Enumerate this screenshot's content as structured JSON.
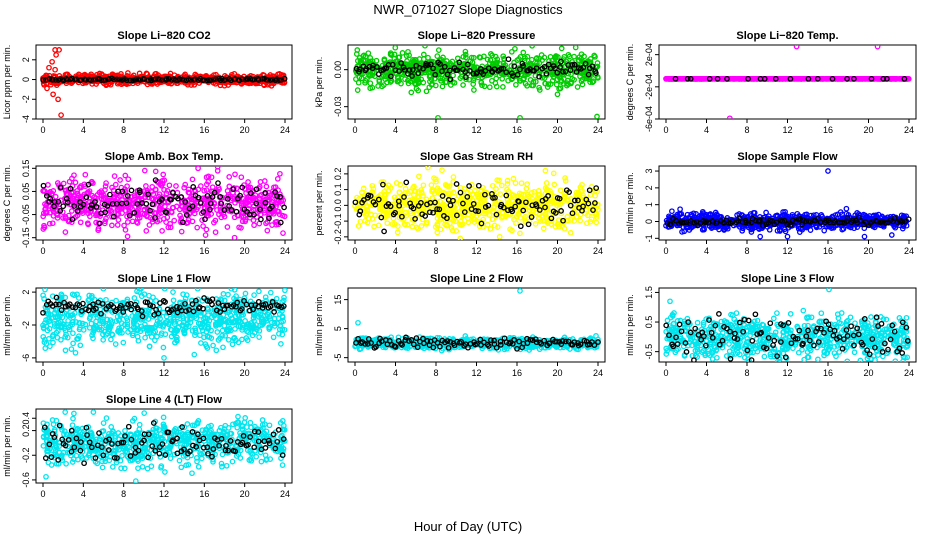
{
  "figure": {
    "title": "NWR_071027  Slope Diagnostics",
    "xlabel": "Hour of Day (UTC)"
  },
  "chart_data": [
    {
      "type": "scatter",
      "title": "Slope Li−820 CO2",
      "ylabel": "Licor ppm per min.",
      "xlim": [
        0,
        24
      ],
      "xticks": [
        "0",
        "4",
        "8",
        "12",
        "16",
        "20",
        "24"
      ],
      "ylim": [
        -4,
        3.5
      ],
      "yticks": [
        {
          "v": -4,
          "label": "-4"
        },
        {
          "v": -2,
          "label": "-2"
        },
        {
          "v": 0,
          "label": "0"
        },
        {
          "v": 2,
          "label": "2"
        }
      ],
      "color": "#ff0000",
      "spread": 0.25,
      "black_spread": 0.05,
      "outliers": [
        [
          1.2,
          3.0
        ],
        [
          1.6,
          3.0
        ],
        [
          1.3,
          2.5
        ],
        [
          0.9,
          1.8
        ],
        [
          0.6,
          1.2
        ],
        [
          1.5,
          -2.0
        ],
        [
          1.8,
          -3.6
        ],
        [
          0.4,
          -0.9
        ],
        [
          1.0,
          -1.5
        ],
        [
          1.2,
          1.0
        ]
      ]
    },
    {
      "type": "scatter",
      "title": "Slope Li−820 Pressure",
      "ylabel": "kPa per min.",
      "xlim": [
        0,
        24
      ],
      "xticks": [
        "0",
        "4",
        "8",
        "12",
        "16",
        "20",
        "24"
      ],
      "ylim": [
        -0.04,
        0.02
      ],
      "yticks": [
        {
          "v": -0.03,
          "label": "-0.03"
        },
        {
          "v": 0.0,
          "label": "0.00"
        }
      ],
      "color": "#00cc00",
      "spread": 0.007,
      "black_spread": 0.003,
      "outliers": [
        [
          8.2,
          -0.039
        ],
        [
          16.3,
          -0.039
        ],
        [
          23.9,
          -0.038
        ],
        [
          1.5,
          -0.015
        ],
        [
          21.8,
          0.018
        ],
        [
          20.0,
          -0.02
        ]
      ]
    },
    {
      "type": "scatter",
      "title": "Slope Li−820 Temp.",
      "ylabel": "degrees C per min.",
      "xlim": [
        0,
        24
      ],
      "xticks": [
        "0",
        "4",
        "8",
        "12",
        "16",
        "20",
        "24"
      ],
      "ylim": [
        -0.0006,
        0.00032
      ],
      "yticks": [
        {
          "v": -0.0006,
          "label": "-6e-04"
        },
        {
          "v": -0.0002,
          "label": "-2e-04"
        },
        {
          "v": 0.0002,
          "label": "2e-04"
        }
      ],
      "color": "#ff00ff",
      "spread": 0.0,
      "black_spread": 0.0,
      "constant": -0.0001,
      "outliers": [
        [
          12.9,
          0.0003
        ],
        [
          20.9,
          0.0003
        ],
        [
          6.3,
          -0.0006
        ]
      ]
    },
    {
      "type": "scatter",
      "title": "Slope Amb. Box Temp.",
      "ylabel": "degrees C per min.",
      "xlim": [
        0,
        24
      ],
      "xticks": [
        "0",
        "4",
        "8",
        "12",
        "16",
        "20",
        "24"
      ],
      "ylim": [
        -0.16,
        0.16
      ],
      "yticks": [
        {
          "v": -0.15,
          "label": "-0.15"
        },
        {
          "v": -0.05,
          "label": "-0.05"
        },
        {
          "v": 0.05,
          "label": "0.05"
        },
        {
          "v": 0.15,
          "label": "0.15"
        }
      ],
      "color": "#ff00ff",
      "spread": 0.055,
      "black_spread": 0.04,
      "outliers": [
        [
          10.1,
          0.14
        ],
        [
          19.0,
          -0.15
        ],
        [
          23.8,
          -0.13
        ]
      ]
    },
    {
      "type": "scatter",
      "title": "Slope Gas Stream RH",
      "ylabel": "percent per min.",
      "xlim": [
        0,
        24
      ],
      "xticks": [
        "0",
        "4",
        "8",
        "12",
        "16",
        "20",
        "24"
      ],
      "ylim": [
        -0.22,
        0.25
      ],
      "yticks": [
        {
          "v": -0.2,
          "label": "-0.2"
        },
        {
          "v": -0.1,
          "label": "-0.1"
        },
        {
          "v": 0.0,
          "label": "0.0"
        },
        {
          "v": 0.1,
          "label": "0.1"
        },
        {
          "v": 0.2,
          "label": "0.2"
        }
      ],
      "color": "#ffff00",
      "spread": 0.075,
      "black_spread": 0.06,
      "outliers": [
        [
          7.2,
          0.24
        ],
        [
          10.4,
          -0.21
        ],
        [
          18.8,
          0.22
        ]
      ]
    },
    {
      "type": "scatter",
      "title": "Slope Sample Flow",
      "ylabel": "ml/min per min.",
      "xlim": [
        0,
        24
      ],
      "xticks": [
        "0",
        "4",
        "8",
        "12",
        "16",
        "20",
        "24"
      ],
      "ylim": [
        -1.1,
        3.3
      ],
      "yticks": [
        {
          "v": -1,
          "label": "-1"
        },
        {
          "v": 0,
          "label": "0"
        },
        {
          "v": 1,
          "label": "1"
        },
        {
          "v": 2,
          "label": "2"
        },
        {
          "v": 3,
          "label": "3"
        }
      ],
      "color": "#0000ff",
      "spread": 0.25,
      "black_spread": 0.1,
      "outliers": [
        [
          16.0,
          3.0
        ],
        [
          9.3,
          -0.9
        ],
        [
          12.0,
          -0.9
        ],
        [
          19.6,
          -0.9
        ],
        [
          22.3,
          -0.8
        ]
      ]
    },
    {
      "type": "scatter",
      "title": "Slope Line 1 Flow",
      "ylabel": "ml/min per min.",
      "xlim": [
        0,
        24
      ],
      "xticks": [
        "0",
        "4",
        "8",
        "12",
        "16",
        "20",
        "24"
      ],
      "ylim": [
        -6.5,
        2.5
      ],
      "yticks": [
        {
          "v": -6,
          "label": "-6"
        },
        {
          "v": -2,
          "label": "-2"
        },
        {
          "v": 2,
          "label": "2"
        }
      ],
      "color": "#00e5ee",
      "spread": 1.6,
      "black_spread": 0.5,
      "center": -1.2,
      "black_center": 0.3,
      "outliers": [
        [
          0.2,
          2.3
        ],
        [
          9.8,
          1.5
        ],
        [
          12.0,
          -6.0
        ],
        [
          15.0,
          -5.6
        ]
      ]
    },
    {
      "type": "scatter",
      "title": "Slope Line 2 Flow",
      "ylabel": "ml/min per min.",
      "xlim": [
        0,
        24
      ],
      "xticks": [
        "0",
        "4",
        "8",
        "12",
        "16",
        "20",
        "24"
      ],
      "ylim": [
        -6.5,
        19
      ],
      "yticks": [
        {
          "v": -5,
          "label": "-5"
        },
        {
          "v": 5,
          "label": "5"
        },
        {
          "v": 15,
          "label": "15"
        }
      ],
      "color": "#00e5ee",
      "spread": 0.9,
      "black_spread": 0.9,
      "outliers": [
        [
          0.3,
          7.0
        ],
        [
          16.3,
          18.0
        ],
        [
          23.8,
          2.5
        ]
      ]
    },
    {
      "type": "scatter",
      "title": "Slope Line 3 Flow",
      "ylabel": "ml/min per min.",
      "xlim": [
        0,
        24
      ],
      "xticks": [
        "0",
        "4",
        "8",
        "12",
        "16",
        "20",
        "24"
      ],
      "ylim": [
        -0.85,
        1.65
      ],
      "yticks": [
        {
          "v": -0.5,
          "label": "-0.5"
        },
        {
          "v": 0.5,
          "label": "0.5"
        },
        {
          "v": 1.5,
          "label": "1.5"
        }
      ],
      "color": "#00e5ee",
      "spread": 0.38,
      "black_spread": 0.35,
      "outliers": [
        [
          0.4,
          1.2
        ],
        [
          16.1,
          1.6
        ],
        [
          19.2,
          -0.8
        ],
        [
          23.6,
          -0.7
        ],
        [
          4.6,
          -0.75
        ]
      ]
    },
    {
      "type": "scatter",
      "title": "Slope Line 4 (LT) Flow",
      "ylabel": "ml/min per min.",
      "xlim": [
        0,
        24
      ],
      "xticks": [
        "0",
        "4",
        "8",
        "12",
        "16",
        "20",
        "24"
      ],
      "ylim": [
        -0.65,
        0.55
      ],
      "yticks": [
        {
          "v": -0.6,
          "label": "-0.6"
        },
        {
          "v": -0.2,
          "label": "-0.2"
        },
        {
          "v": 0.2,
          "label": "0.2"
        },
        {
          "v": 0.4,
          "label": "0.4"
        }
      ],
      "color": "#00e5ee",
      "spread": 0.18,
      "black_spread": 0.15,
      "outliers": [
        [
          2.2,
          0.5
        ],
        [
          5.0,
          0.5
        ],
        [
          9.2,
          -0.62
        ],
        [
          0.3,
          -0.55
        ]
      ]
    }
  ]
}
